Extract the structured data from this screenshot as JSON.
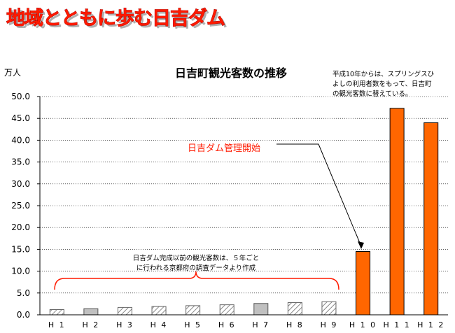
{
  "banner": {
    "text": "地域とともに歩む日吉ダム"
  },
  "chart_data": {
    "type": "bar",
    "title": "日吉町観光客数の推移",
    "unit_label": "万人",
    "ylim": [
      0,
      50
    ],
    "yticks": [
      "0.0",
      "5.0",
      "10.0",
      "15.0",
      "20.0",
      "25.0",
      "30.0",
      "35.0",
      "40.0",
      "45.0",
      "50.0"
    ],
    "grid": true,
    "categories": [
      "H1",
      "H2",
      "H3",
      "H4",
      "H5",
      "H6",
      "H7",
      "H8",
      "H9",
      "H10",
      "H11",
      "H12"
    ],
    "category_labels": [
      "H 1",
      "H 2",
      "H 3",
      "H 4",
      "H 5",
      "H 6",
      "H 7",
      "H 8",
      "H 9",
      "H 1 0",
      "H 1 1",
      "H 1 2"
    ],
    "values": [
      1.2,
      1.4,
      1.7,
      1.9,
      2.1,
      2.3,
      2.6,
      2.8,
      3.0,
      14.5,
      47.3,
      44.0
    ],
    "styles": [
      "hatch",
      "gray",
      "hatch",
      "hatch",
      "hatch",
      "hatch",
      "gray",
      "hatch",
      "hatch",
      "orange",
      "orange",
      "orange"
    ],
    "colors": {
      "orange": "#ff6600",
      "gray": "#c0c0c0",
      "hatch": "#d8d8d8",
      "annotation": "#ff1a00"
    },
    "annotations": {
      "top_note": [
        "平成10年からは、スプリングスひ",
        "よしの利用者数をもって、日吉町",
        "の観光客数に替えている。"
      ],
      "dam_start": "日吉ダム管理開始",
      "brace_note": [
        "日吉ダム完成以前の観光客数は、５年ごと",
        "に行われる京都府の調査データより作成"
      ]
    }
  }
}
